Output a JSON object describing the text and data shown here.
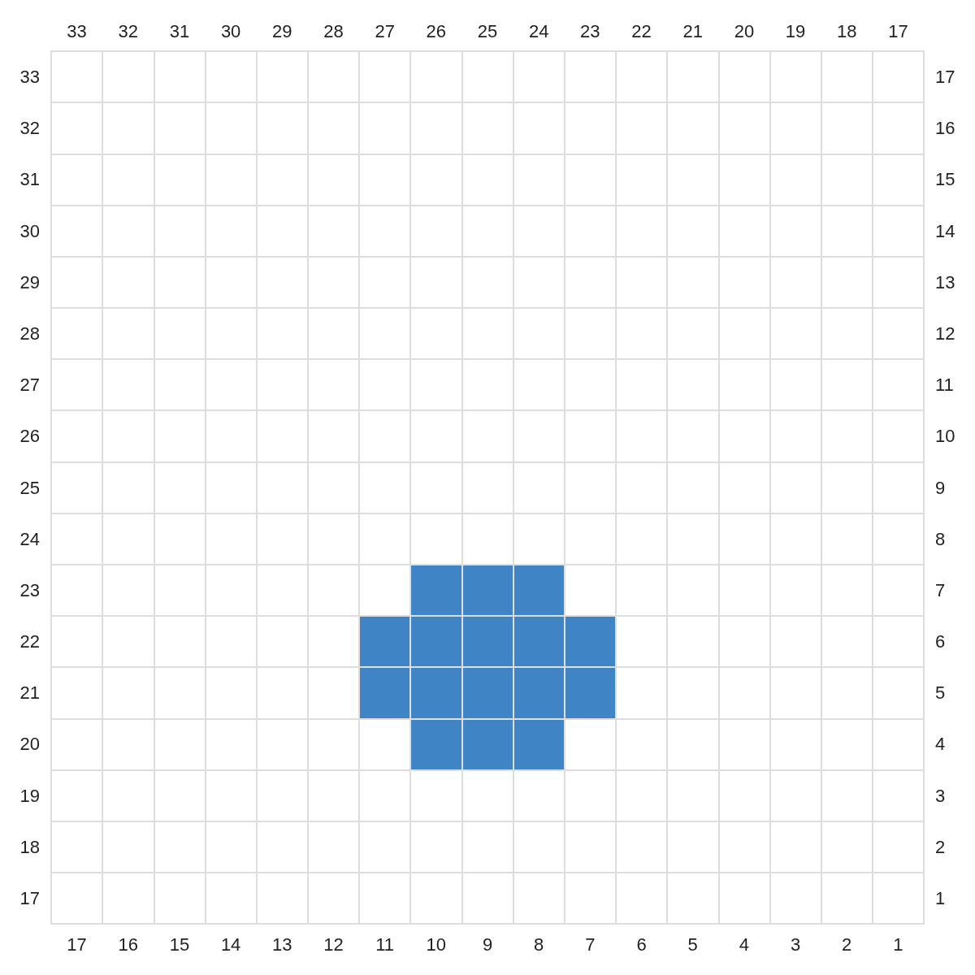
{
  "chart_data": {
    "type": "bar",
    "color": "#3f85c6",
    "grid": true,
    "categories": [
      "17",
      "16",
      "15",
      "14",
      "13",
      "12",
      "11",
      "10",
      "9",
      "8",
      "7",
      "6",
      "5",
      "4",
      "3",
      "2",
      "1"
    ],
    "values": [
      null,
      null,
      null,
      null,
      null,
      null,
      2,
      4,
      4,
      4,
      2,
      null,
      null,
      null,
      null,
      null,
      null
    ],
    "base": [
      null,
      null,
      null,
      null,
      null,
      null,
      20.5,
      19.5,
      19.5,
      19.5,
      20.5,
      null,
      null,
      null,
      null,
      null,
      null
    ],
    "ylim": [
      16.5,
      33.5
    ],
    "yticks": [
      17,
      18,
      19,
      20,
      21,
      22,
      23,
      24,
      25,
      26,
      27,
      28,
      29,
      30,
      31,
      32,
      33
    ],
    "x2lim": [
      33.5,
      16.5
    ],
    "x2ticks": [
      33,
      32,
      31,
      30,
      29,
      28,
      27,
      26,
      25,
      24,
      23,
      22,
      21,
      20,
      19,
      18,
      17
    ],
    "y2lim": [
      0.5,
      17.5
    ],
    "y2ticks": [
      1,
      2,
      3,
      4,
      5,
      6,
      7,
      8,
      9,
      10,
      11,
      12,
      13,
      14,
      15,
      16,
      17
    ]
  }
}
